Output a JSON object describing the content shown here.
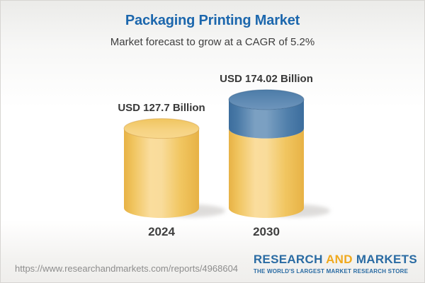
{
  "header": {
    "title": "Packaging Printing Market",
    "subtitle": "Market forecast to grow at a CAGR of 5.2%"
  },
  "chart_data": {
    "type": "bar",
    "style": "3d-cylinder",
    "title": "Packaging Printing Market",
    "subtitle": "Market forecast to grow at a CAGR of 5.2%",
    "cagr_percent": 5.2,
    "unit": "USD Billion",
    "categories": [
      "2024",
      "2030"
    ],
    "values": [
      127.7,
      174.02
    ],
    "value_labels": [
      "USD 127.7 Billion",
      "USD 174.02 Billion"
    ],
    "series": [
      {
        "name": "base",
        "color": "#f5ca66",
        "values": [
          127.7,
          127.7
        ]
      },
      {
        "name": "growth",
        "color": "#4a7caa",
        "values": [
          0,
          46.32
        ]
      }
    ],
    "legend": "none",
    "axes": "none",
    "grid": false
  },
  "footer": {
    "url": "https://www.researchandmarkets.com/reports/4968604",
    "logo": {
      "word1": "RESEARCH",
      "word2": "AND",
      "word3": "MARKETS",
      "tagline": "THE WORLD'S LARGEST MARKET RESEARCH STORE",
      "blue": "#2a6ba3",
      "orange": "#f0a91e"
    }
  },
  "colors": {
    "title_blue": "#1c67ad",
    "text_dark": "#3e3e3e",
    "yellow_edge": "#e7b245",
    "yellow_highlight": "#fadd9d",
    "blue_edge": "#3c6d9d",
    "blue_highlight": "#7ba0c2",
    "url_gray": "#8d8d8d"
  }
}
